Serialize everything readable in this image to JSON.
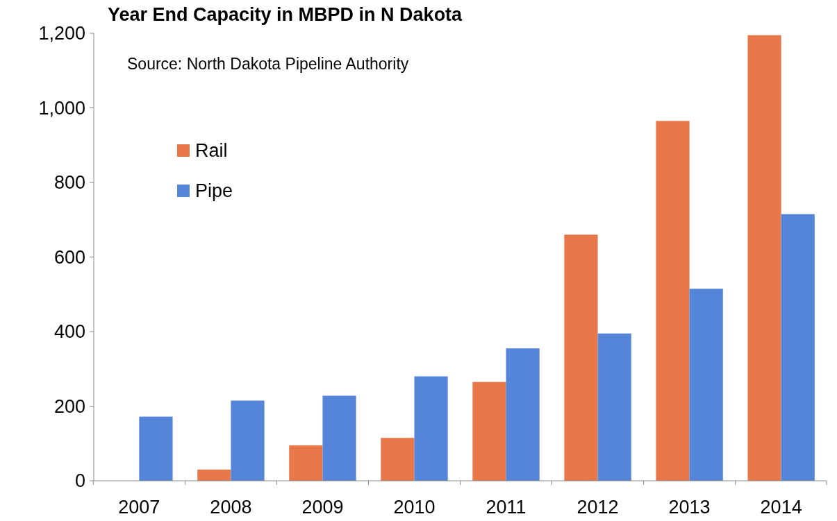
{
  "chart_data": {
    "type": "bar",
    "title": "Year End Capacity in MBPD in N Dakota",
    "annotations": [
      "Source: North Dakota Pipeline Authority"
    ],
    "categories": [
      "2007",
      "2008",
      "2009",
      "2010",
      "2011",
      "2012",
      "2013",
      "2014"
    ],
    "series": [
      {
        "name": "Rail",
        "color": "#e8784a",
        "values": [
          0,
          30,
          95,
          115,
          265,
          660,
          965,
          1195
        ]
      },
      {
        "name": "Pipe",
        "color": "#5585d8",
        "values": [
          172,
          215,
          228,
          280,
          355,
          395,
          515,
          715
        ]
      }
    ],
    "ylim": [
      0,
      1200
    ],
    "yticks": [
      0,
      {
        "value": 200,
        "label": "200"
      },
      {
        "value": 400,
        "label": "400"
      },
      {
        "value": 600,
        "label": "600"
      },
      {
        "value": 800,
        "label": "800"
      },
      {
        "value": 1000,
        "label": "1,000"
      },
      {
        "value": 1200,
        "label": "1,200"
      }
    ],
    "grid": false,
    "legend": "top left"
  }
}
